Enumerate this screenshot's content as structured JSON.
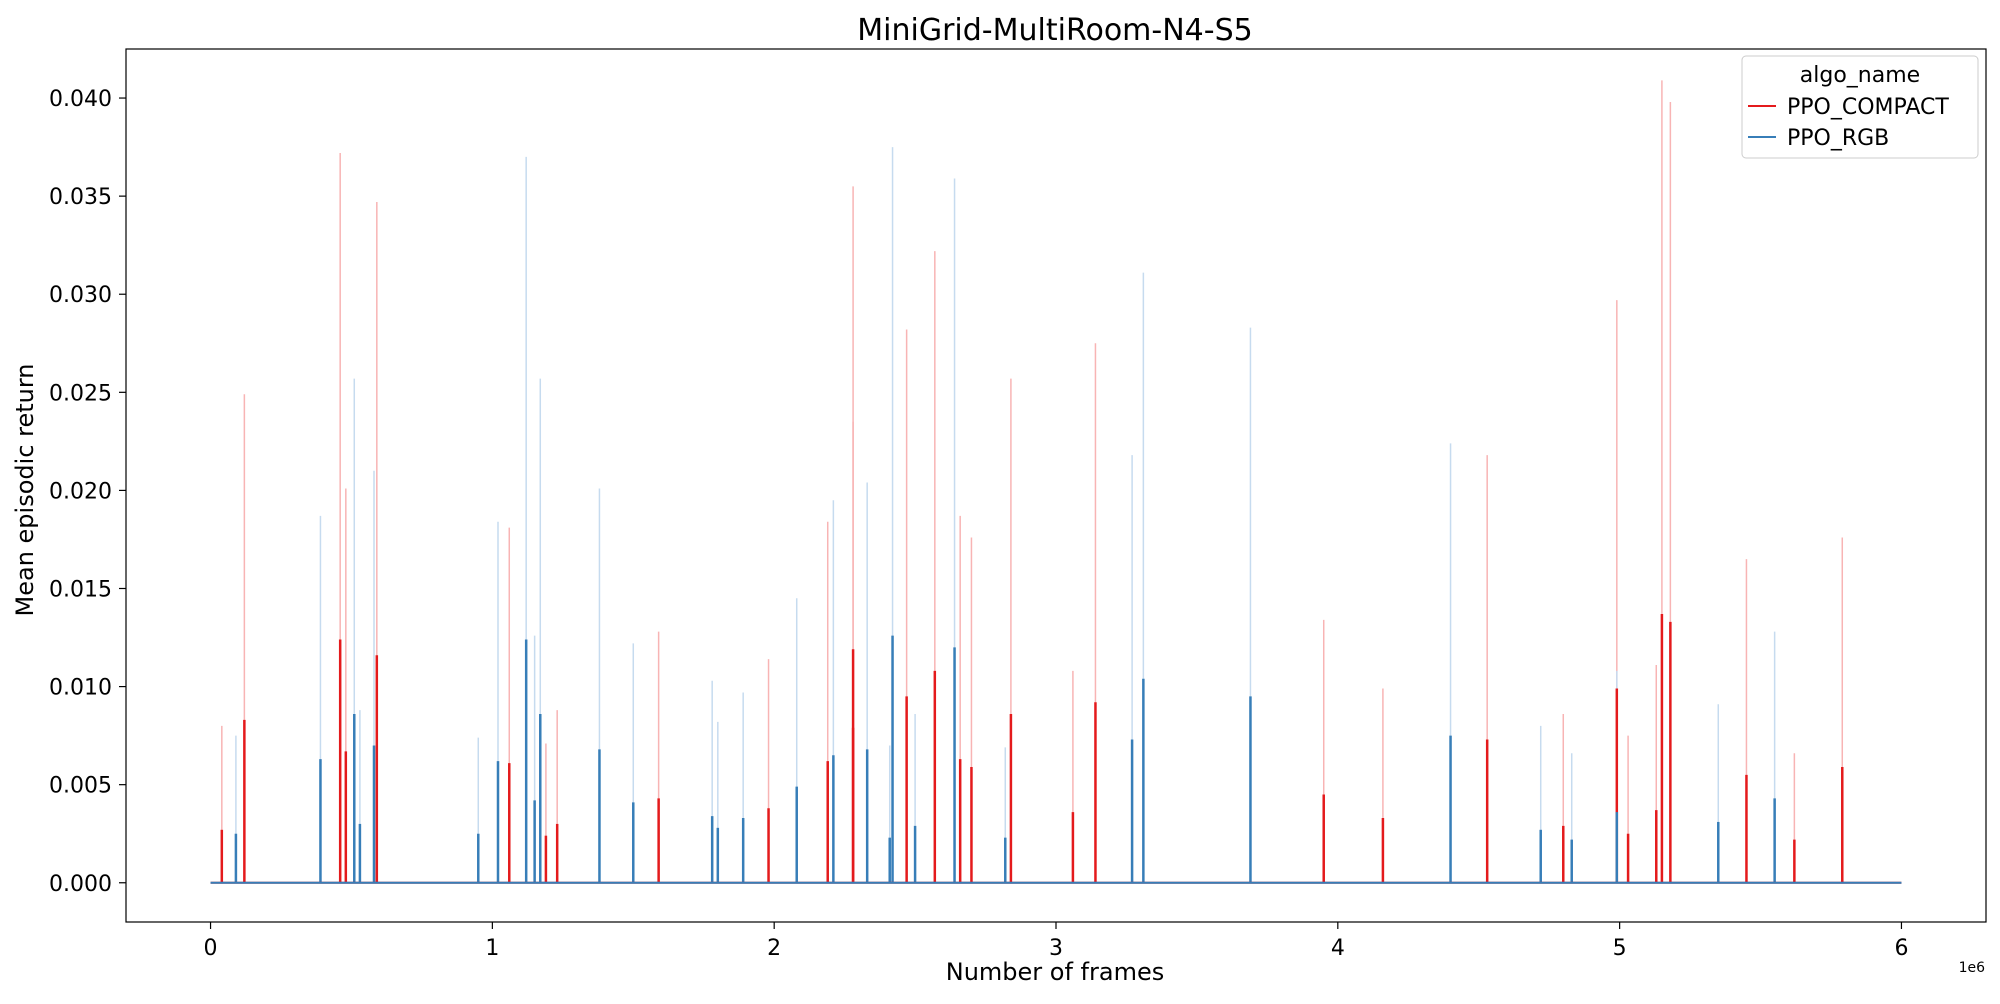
{
  "chart_data": {
    "type": "line",
    "title": "MiniGrid-MultiRoom-N4-S5",
    "xlabel": "Number of frames",
    "ylabel": "Mean episodic return",
    "x_offset_label": "1e6",
    "xlim": [
      -0.3,
      6.3
    ],
    "ylim": [
      -0.002,
      0.0425
    ],
    "x_ticks": [
      0,
      1,
      2,
      3,
      4,
      5,
      6
    ],
    "x_tick_labels": [
      "0",
      "1",
      "2",
      "3",
      "4",
      "5",
      "6"
    ],
    "y_ticks": [
      0.0,
      0.005,
      0.01,
      0.015,
      0.02,
      0.025,
      0.03,
      0.035,
      0.04
    ],
    "y_tick_labels": [
      "0.000",
      "0.005",
      "0.010",
      "0.015",
      "0.020",
      "0.025",
      "0.030",
      "0.035",
      "0.040"
    ],
    "x_range": [
      0,
      6
    ],
    "grid": false,
    "legend": {
      "title": "algo_name",
      "position": "top-right"
    },
    "series": [
      {
        "name": "PPO_COMPACT",
        "color": "#e41a1c",
        "band_color": "#f8b4b4",
        "spikes": [
          [
            0.04,
            0.0027,
            0.008
          ],
          [
            0.12,
            0.0083,
            0.0249
          ],
          [
            0.46,
            0.0124,
            0.0372
          ],
          [
            0.48,
            0.0067,
            0.0201
          ],
          [
            0.59,
            0.0116,
            0.0347
          ],
          [
            1.06,
            0.0061,
            0.0181
          ],
          [
            1.19,
            0.0024,
            0.0071
          ],
          [
            1.23,
            0.003,
            0.0088
          ],
          [
            1.59,
            0.0043,
            0.0128
          ],
          [
            1.98,
            0.0038,
            0.0114
          ],
          [
            2.19,
            0.0062,
            0.0184
          ],
          [
            2.28,
            0.0119,
            0.0355
          ],
          [
            2.28,
            0.0079,
            0.0235
          ],
          [
            2.47,
            0.0095,
            0.0282
          ],
          [
            2.57,
            0.0108,
            0.0322
          ],
          [
            2.66,
            0.0063,
            0.0187
          ],
          [
            2.7,
            0.0059,
            0.0176
          ],
          [
            2.84,
            0.0086,
            0.0257
          ],
          [
            3.06,
            0.0036,
            0.0108
          ],
          [
            3.14,
            0.0092,
            0.0275
          ],
          [
            3.95,
            0.0045,
            0.0134
          ],
          [
            4.16,
            0.0033,
            0.0099
          ],
          [
            4.53,
            0.0073,
            0.0218
          ],
          [
            4.8,
            0.0029,
            0.0086
          ],
          [
            4.99,
            0.0099,
            0.0297
          ],
          [
            5.03,
            0.0025,
            0.0075
          ],
          [
            5.13,
            0.0037,
            0.0111
          ],
          [
            5.15,
            0.0137,
            0.0409
          ],
          [
            5.18,
            0.0133,
            0.0398
          ],
          [
            5.45,
            0.0055,
            0.0165
          ],
          [
            5.62,
            0.0022,
            0.0066
          ],
          [
            5.79,
            0.0059,
            0.0176
          ]
        ]
      },
      {
        "name": "PPO_RGB",
        "color": "#377eb8",
        "band_color": "#c6dbef",
        "spikes": [
          [
            0.09,
            0.0025,
            0.0075
          ],
          [
            0.39,
            0.0063,
            0.0187
          ],
          [
            0.51,
            0.0086,
            0.0257
          ],
          [
            0.53,
            0.003,
            0.0088
          ],
          [
            0.58,
            0.007,
            0.021
          ],
          [
            0.95,
            0.0025,
            0.0074
          ],
          [
            1.02,
            0.0062,
            0.0184
          ],
          [
            1.12,
            0.0124,
            0.037
          ],
          [
            1.15,
            0.0042,
            0.0126
          ],
          [
            1.17,
            0.0086,
            0.0257
          ],
          [
            1.38,
            0.0068,
            0.0201
          ],
          [
            1.5,
            0.0041,
            0.0122
          ],
          [
            1.78,
            0.0034,
            0.0103
          ],
          [
            1.8,
            0.0028,
            0.0082
          ],
          [
            1.89,
            0.0033,
            0.0097
          ],
          [
            2.08,
            0.0049,
            0.0145
          ],
          [
            2.21,
            0.0065,
            0.0195
          ],
          [
            2.33,
            0.0068,
            0.0204
          ],
          [
            2.41,
            0.0023,
            0.007
          ],
          [
            2.42,
            0.0126,
            0.0375
          ],
          [
            2.5,
            0.0029,
            0.0086
          ],
          [
            2.64,
            0.012,
            0.0359
          ],
          [
            2.82,
            0.0023,
            0.0069
          ],
          [
            3.27,
            0.0073,
            0.0218
          ],
          [
            3.31,
            0.0104,
            0.0311
          ],
          [
            3.69,
            0.0095,
            0.0283
          ],
          [
            4.4,
            0.0075,
            0.0224
          ],
          [
            4.72,
            0.0027,
            0.008
          ],
          [
            4.83,
            0.0022,
            0.0066
          ],
          [
            4.99,
            0.0036,
            0.0108
          ],
          [
            5.35,
            0.0031,
            0.0091
          ],
          [
            5.55,
            0.0043,
            0.0128
          ]
        ]
      }
    ]
  }
}
